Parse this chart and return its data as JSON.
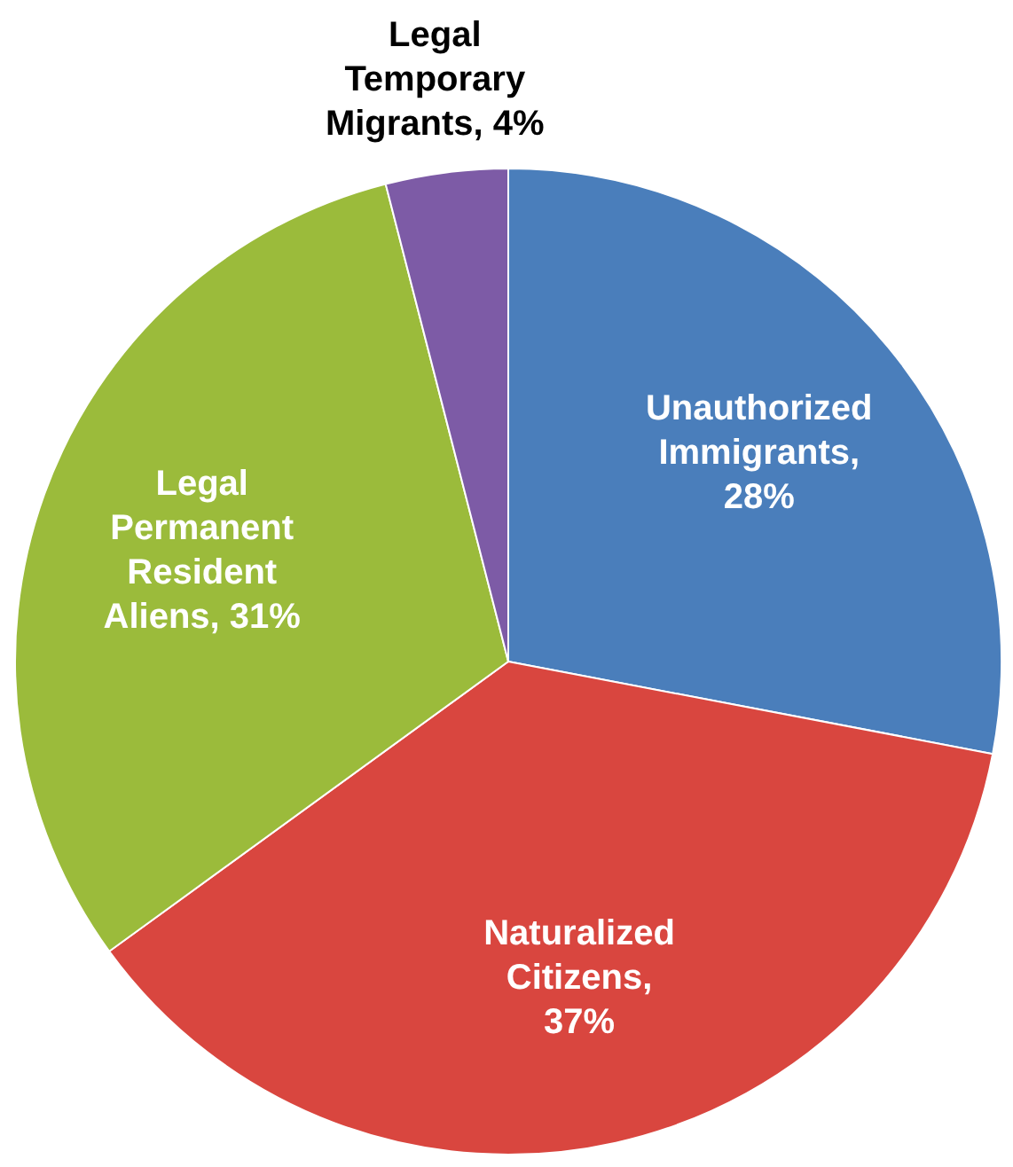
{
  "chart_data": {
    "type": "pie",
    "categories": [
      "Unauthorized Immigrants",
      "Naturalized Citizens",
      "Legal Permanent Resident Aliens",
      "Legal Temporary Migrants"
    ],
    "values": [
      28,
      37,
      31,
      4
    ],
    "colors": [
      "#4a7ebb",
      "#d9463f",
      "#9bbb3b",
      "#7d5ba6"
    ],
    "value_labels": [
      ", 28%",
      ", 37%",
      ", 31%",
      ", 4%"
    ],
    "legend": false
  }
}
